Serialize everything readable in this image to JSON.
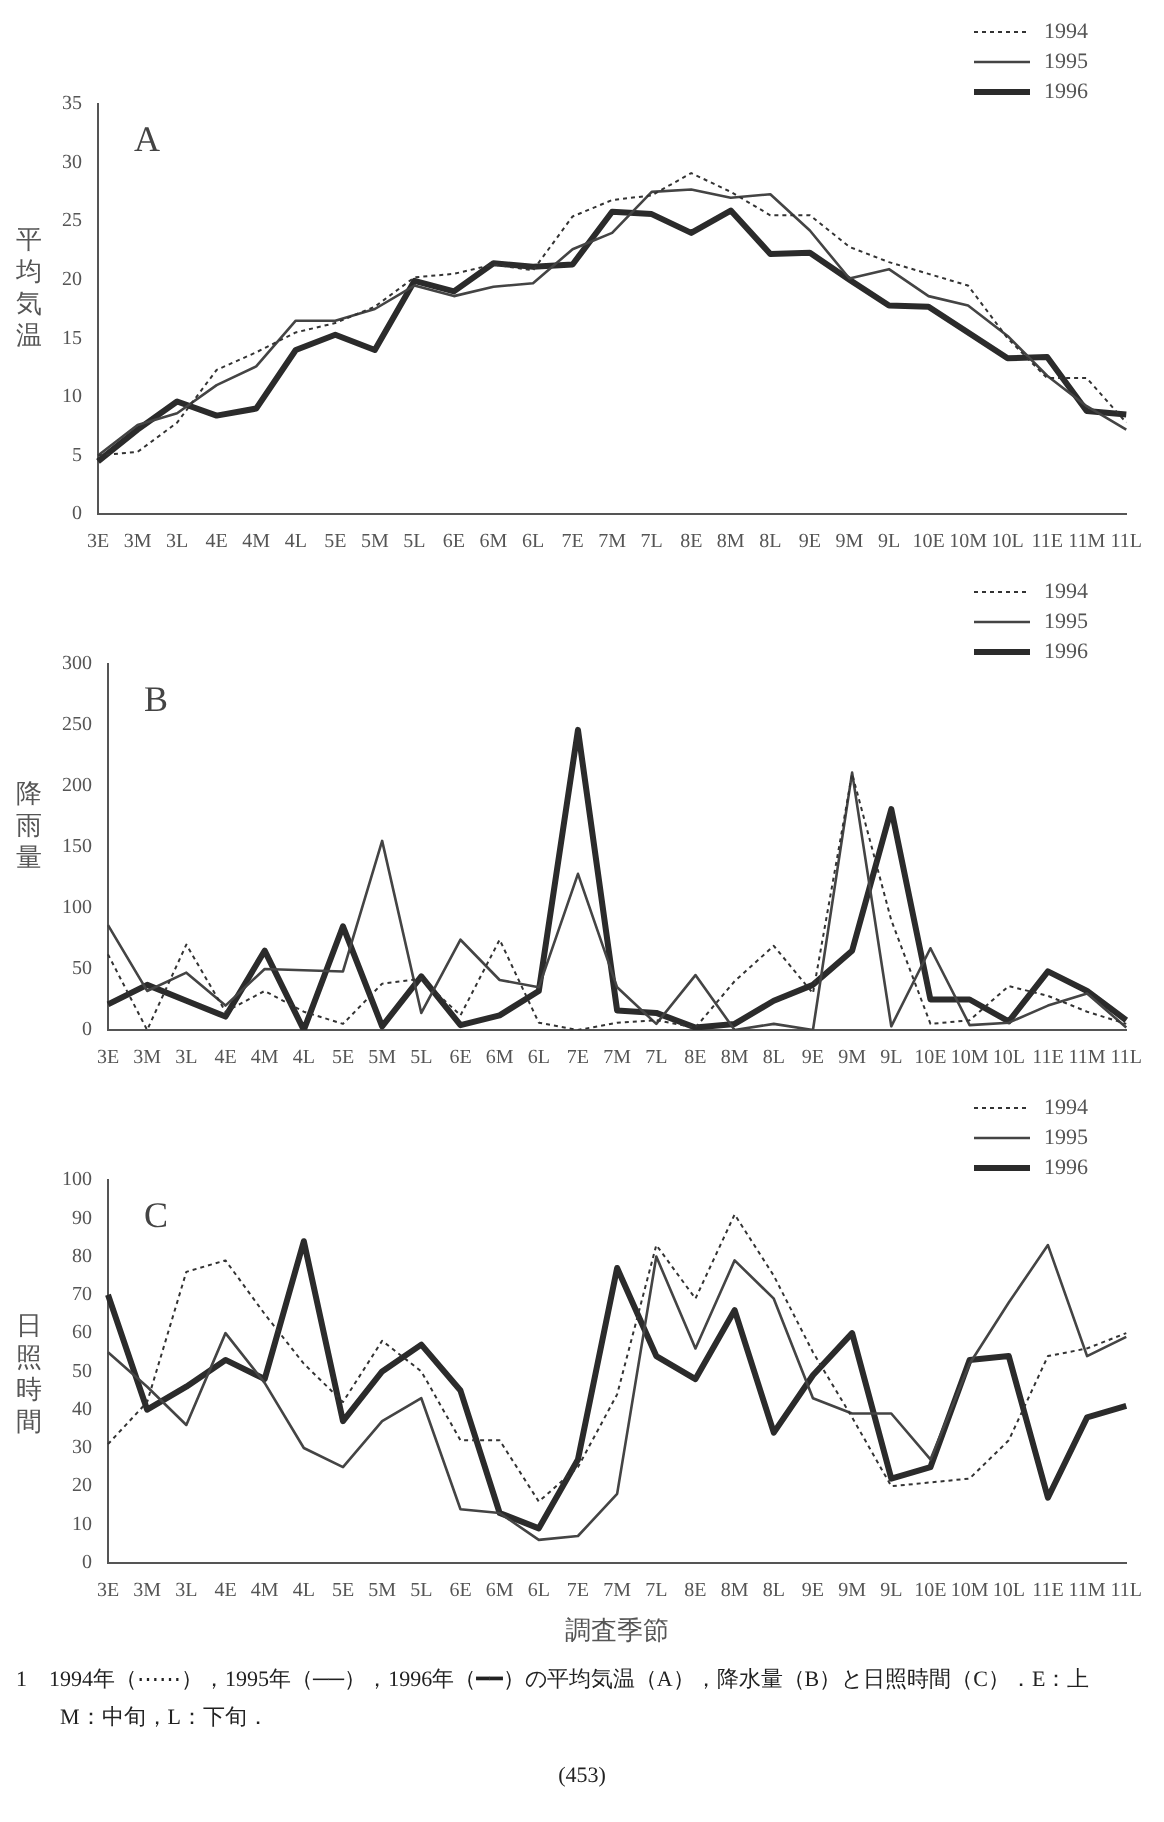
{
  "chart_data": [
    {
      "type": "line",
      "title": "A",
      "ylabel": "平均気温",
      "categories": [
        "3E",
        "3M",
        "3L",
        "4E",
        "4M",
        "4L",
        "5E",
        "5M",
        "5L",
        "6E",
        "6M",
        "6L",
        "7E",
        "7M",
        "7L",
        "8E",
        "8M",
        "8L",
        "9E",
        "9M",
        "9L",
        "10E",
        "10M",
        "10L",
        "11E",
        "11M",
        "11L"
      ],
      "series": [
        {
          "name": "1994",
          "color": "#333333",
          "line_style": "dotted",
          "values": [
            5,
            5.3,
            7.8,
            12.3,
            13.8,
            15.5,
            16.3,
            17.7,
            20.2,
            20.5,
            21.3,
            20.8,
            25.4,
            26.8,
            27.2,
            29.1,
            27.5,
            25.5,
            25.5,
            22.8,
            21.5,
            20.5,
            19.5,
            15,
            11.6,
            11.6,
            7.8
          ]
        },
        {
          "name": "1995",
          "color": "#444444",
          "line_style": "solid",
          "values": [
            5,
            7.6,
            8.6,
            11,
            12.6,
            16.5,
            16.5,
            17.5,
            19.5,
            18.6,
            19.4,
            19.7,
            22.6,
            24,
            27.5,
            27.7,
            27,
            27.3,
            24.2,
            20.1,
            20.9,
            18.6,
            17.8,
            15.2,
            11.8,
            9.2,
            7.2
          ]
        },
        {
          "name": "1996",
          "color": "#2b2b2b",
          "line_style": "solid",
          "values": [
            4.5,
            7.2,
            9.6,
            8.4,
            9,
            14,
            15.3,
            14,
            19.9,
            19,
            21.4,
            21.1,
            21.3,
            25.8,
            25.6,
            24,
            25.9,
            22.2,
            22.3,
            20,
            17.8,
            17.7,
            15.5,
            13.3,
            13.4,
            8.8,
            8.5
          ]
        }
      ],
      "ylim": [
        0,
        35
      ],
      "yticks": [
        0,
        5,
        10,
        15,
        20,
        25,
        30,
        35
      ],
      "grid": false,
      "legend": "top right",
      "marker": "none"
    },
    {
      "type": "line",
      "title": "B",
      "ylabel": "降雨量",
      "categories": [
        "3E",
        "3M",
        "3L",
        "4E",
        "4M",
        "4L",
        "5E",
        "5M",
        "5L",
        "6E",
        "6M",
        "6L",
        "7E",
        "7M",
        "7L",
        "8E",
        "8M",
        "8L",
        "9E",
        "9M",
        "9L",
        "10E",
        "10M",
        "10L",
        "11E",
        "11M",
        "11L"
      ],
      "series": [
        {
          "name": "1994",
          "color": "#333333",
          "line_style": "dotted",
          "values": [
            62,
            0,
            70,
            15,
            32,
            15,
            5,
            38,
            42,
            12,
            74,
            6,
            0,
            6,
            8,
            2,
            40,
            69,
            30,
            210,
            90,
            5,
            8,
            36,
            28,
            15,
            5
          ]
        },
        {
          "name": "1995",
          "color": "#444444",
          "line_style": "solid",
          "values": [
            86,
            32,
            47,
            20,
            50,
            49,
            48,
            155,
            14,
            74,
            41,
            35,
            128,
            35,
            5,
            45,
            0,
            5,
            0,
            211,
            3,
            67,
            4,
            6,
            20,
            30,
            2
          ]
        },
        {
          "name": "1996",
          "color": "#2b2b2b",
          "line_style": "solid",
          "values": [
            21,
            37,
            24,
            11,
            65,
            0,
            85,
            3,
            44,
            4,
            12,
            32,
            246,
            16,
            14,
            2,
            5,
            24,
            37,
            65,
            181,
            25,
            25,
            7,
            48,
            32,
            8
          ]
        }
      ],
      "ylim": [
        0,
        300
      ],
      "yticks": [
        0,
        50,
        100,
        150,
        200,
        250,
        300
      ],
      "grid": false,
      "legend": "top right",
      "marker": "none"
    },
    {
      "type": "line",
      "title": "C",
      "ylabel": "日照時間",
      "xlabel": "調査季節",
      "categories": [
        "3E",
        "3M",
        "3L",
        "4E",
        "4M",
        "4L",
        "5E",
        "5M",
        "5L",
        "6E",
        "6M",
        "6L",
        "7E",
        "7M",
        "7L",
        "8E",
        "8M",
        "8L",
        "9E",
        "9M",
        "9L",
        "10E",
        "10M",
        "10L",
        "11E",
        "11M",
        "11L"
      ],
      "series": [
        {
          "name": "1994",
          "color": "#333333",
          "line_style": "dotted",
          "values": [
            31,
            42,
            76,
            79,
            65,
            52,
            42,
            58,
            50,
            32,
            32,
            16,
            25,
            44,
            83,
            69,
            91,
            75,
            55,
            38,
            20,
            21,
            22,
            32,
            54,
            56,
            60
          ]
        },
        {
          "name": "1995",
          "color": "#444444",
          "line_style": "solid",
          "values": [
            55,
            46,
            36,
            60,
            47,
            30,
            25,
            37,
            43,
            14,
            13,
            6,
            7,
            18,
            80,
            56,
            79,
            69,
            43,
            39,
            39,
            27,
            52,
            68,
            83,
            54,
            59
          ]
        },
        {
          "name": "1996",
          "color": "#2b2b2b",
          "line_style": "solid",
          "values": [
            70,
            40,
            46,
            53,
            48,
            84,
            37,
            50,
            57,
            45,
            13,
            9,
            27,
            77,
            54,
            48,
            66,
            34,
            49,
            60,
            22,
            25,
            53,
            54,
            17,
            38,
            41
          ]
        }
      ],
      "ylim": [
        0,
        100
      ],
      "yticks": [
        0,
        10,
        20,
        30,
        40,
        50,
        60,
        70,
        80,
        90,
        100
      ],
      "grid": false,
      "legend": "top right",
      "marker": "none",
      "annotations": [
        "1　1994年（⋯⋯），1995年（──），1996年（━━）の平均気温（A），降水量（B）と日照時間（C）．E：上",
        "M：中旬，L：下旬．",
        "(453)"
      ]
    }
  ]
}
